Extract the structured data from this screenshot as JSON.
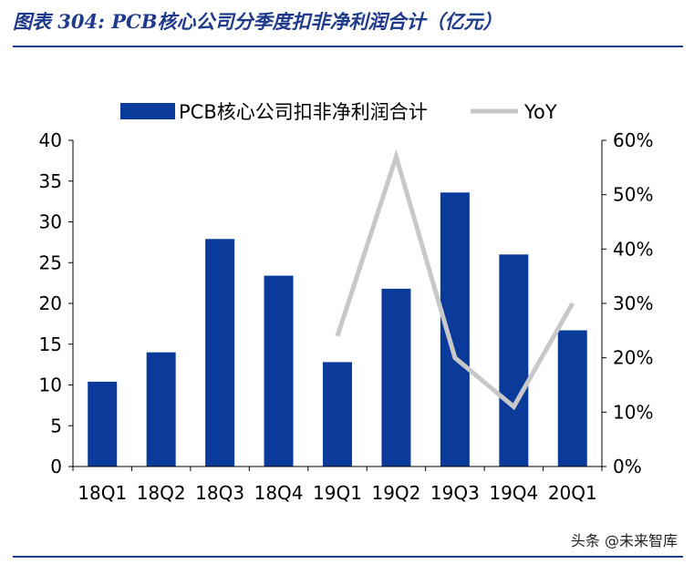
{
  "header": {
    "title": "图表 304:  PCB核心公司分季度扣非净利润合计（亿元）"
  },
  "footer": {
    "source": "头条 @未来智库"
  },
  "colors": {
    "bar": "#0A3A9A",
    "line": "#C8C8C8",
    "accent": "#1F3A8A"
  },
  "chart_data": {
    "type": "bar",
    "categories": [
      "18Q1",
      "18Q2",
      "18Q3",
      "18Q4",
      "19Q1",
      "19Q2",
      "19Q3",
      "19Q4",
      "20Q1"
    ],
    "series": [
      {
        "name": "PCB核心公司扣非净利润合计",
        "type": "bar",
        "axis": "left",
        "values": [
          10.4,
          14.0,
          27.9,
          23.4,
          12.8,
          21.8,
          33.6,
          26.0,
          16.7
        ]
      },
      {
        "name": "YoY",
        "type": "line",
        "axis": "right",
        "values": [
          null,
          null,
          null,
          null,
          0.24,
          0.57,
          0.2,
          0.11,
          0.3
        ]
      }
    ],
    "y_left": {
      "min": 0,
      "max": 40,
      "step": 5,
      "ticks": [
        "0",
        "5",
        "10",
        "15",
        "20",
        "25",
        "30",
        "35",
        "40"
      ]
    },
    "y_right": {
      "min": 0,
      "max": 0.6,
      "step": 0.1,
      "ticks": [
        "0%",
        "10%",
        "20%",
        "30%",
        "40%",
        "50%",
        "60%"
      ]
    },
    "grid": false,
    "legend": "top"
  }
}
